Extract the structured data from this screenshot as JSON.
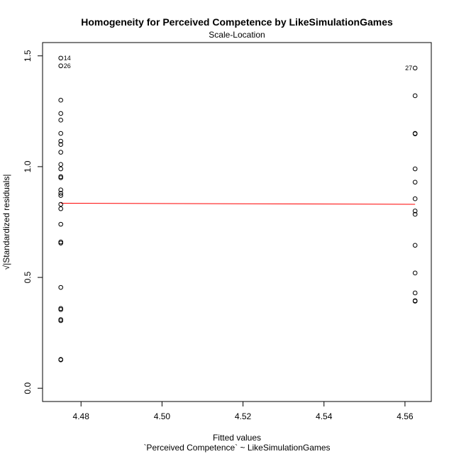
{
  "chart_data": {
    "type": "scatter",
    "title": "Homogeneity for Perceived Competence by LikeSimulationGames",
    "subtitle": "Scale-Location",
    "xlabel": "Fitted values",
    "xlabel_sub": "`Perceived Competence` ~ LikeSimulationGames",
    "ylabel": "√|Standardized residuals|",
    "xlim": [
      4.4705,
      4.5665
    ],
    "ylim": [
      -0.06,
      1.56
    ],
    "xticks": [
      4.48,
      4.5,
      4.52,
      4.54,
      4.56
    ],
    "xtick_labels": [
      "4.48",
      "4.50",
      "4.52",
      "4.54",
      "4.56"
    ],
    "yticks": [
      0.0,
      0.5,
      1.0,
      1.5
    ],
    "ytick_labels": [
      "0.0",
      "0.5",
      "1.0",
      "1.5"
    ],
    "points": [
      {
        "x": 4.475,
        "y": 1.49,
        "label": "14",
        "label_side": "right"
      },
      {
        "x": 4.475,
        "y": 1.455,
        "label": "26",
        "label_side": "right"
      },
      {
        "x": 4.475,
        "y": 1.3
      },
      {
        "x": 4.475,
        "y": 1.24
      },
      {
        "x": 4.475,
        "y": 1.21
      },
      {
        "x": 4.475,
        "y": 1.15
      },
      {
        "x": 4.475,
        "y": 1.115
      },
      {
        "x": 4.475,
        "y": 1.1
      },
      {
        "x": 4.475,
        "y": 1.065
      },
      {
        "x": 4.475,
        "y": 1.01
      },
      {
        "x": 4.475,
        "y": 0.99
      },
      {
        "x": 4.475,
        "y": 0.955
      },
      {
        "x": 4.475,
        "y": 0.95
      },
      {
        "x": 4.475,
        "y": 0.895
      },
      {
        "x": 4.475,
        "y": 0.88
      },
      {
        "x": 4.475,
        "y": 0.87
      },
      {
        "x": 4.475,
        "y": 0.83
      },
      {
        "x": 4.475,
        "y": 0.81
      },
      {
        "x": 4.475,
        "y": 0.74
      },
      {
        "x": 4.475,
        "y": 0.66
      },
      {
        "x": 4.475,
        "y": 0.655
      },
      {
        "x": 4.475,
        "y": 0.455
      },
      {
        "x": 4.475,
        "y": 0.36
      },
      {
        "x": 4.475,
        "y": 0.355
      },
      {
        "x": 4.475,
        "y": 0.31
      },
      {
        "x": 4.475,
        "y": 0.305
      },
      {
        "x": 4.475,
        "y": 0.13
      },
      {
        "x": 4.475,
        "y": 0.128
      },
      {
        "x": 4.5625,
        "y": 1.445,
        "label": "27",
        "label_side": "left"
      },
      {
        "x": 4.5625,
        "y": 1.32
      },
      {
        "x": 4.5625,
        "y": 1.15
      },
      {
        "x": 4.5625,
        "y": 1.148
      },
      {
        "x": 4.5625,
        "y": 0.99
      },
      {
        "x": 4.5625,
        "y": 0.93
      },
      {
        "x": 4.5625,
        "y": 0.855
      },
      {
        "x": 4.5625,
        "y": 0.8
      },
      {
        "x": 4.5625,
        "y": 0.785
      },
      {
        "x": 4.5625,
        "y": 0.645
      },
      {
        "x": 4.5625,
        "y": 0.52
      },
      {
        "x": 4.5625,
        "y": 0.43
      },
      {
        "x": 4.5625,
        "y": 0.395
      },
      {
        "x": 4.5625,
        "y": 0.393
      }
    ],
    "smooth_line": {
      "x": [
        4.475,
        4.5625
      ],
      "y": [
        0.835,
        0.83
      ]
    },
    "colors": {
      "points": "#000000",
      "smooth_line": "#ff0000",
      "frame": "#000000"
    }
  }
}
